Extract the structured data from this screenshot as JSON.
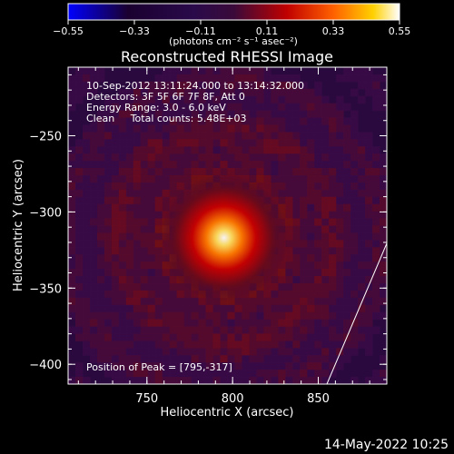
{
  "chart_data": {
    "type": "heatmap",
    "title": "Reconstructed RHESSI Image",
    "colorbar": {
      "min": -0.55,
      "max": 0.55,
      "ticks": [
        "-0.55",
        "-0.33",
        "-0.11",
        "0.11",
        "0.33",
        "0.55"
      ],
      "units": "(photons cm⁻² s⁻¹ asec⁻²)",
      "colormap": [
        "#0000ff",
        "#1a0030",
        "#2a0a4a",
        "#3a0a3a",
        "#c00000",
        "#ff6000",
        "#ffd000",
        "#ffffff"
      ]
    },
    "xlabel": "Heliocentric X (arcsec)",
    "ylabel": "Heliocentric Y (arcsec)",
    "xlim": [
      704,
      890
    ],
    "ylim": [
      -413,
      -205
    ],
    "xticks": [
      750,
      800,
      850
    ],
    "yticks": [
      -250,
      -300,
      -350,
      -400
    ],
    "annotations": [
      "10-Sep-2012 13:11:24.000 to 13:14:32.000",
      "Detectors: 3F 5F 6F 7F 8F, Att 0",
      "Energy Range: 3.0 - 6.0 keV",
      "Clean     Total counts: 5.48E+03"
    ],
    "peak_label": "Position of Peak = [795,-317]",
    "peak": {
      "x": 795,
      "y": -317,
      "value": 0.55
    }
  },
  "footer": {
    "date": "14-May-2022 10:25"
  }
}
